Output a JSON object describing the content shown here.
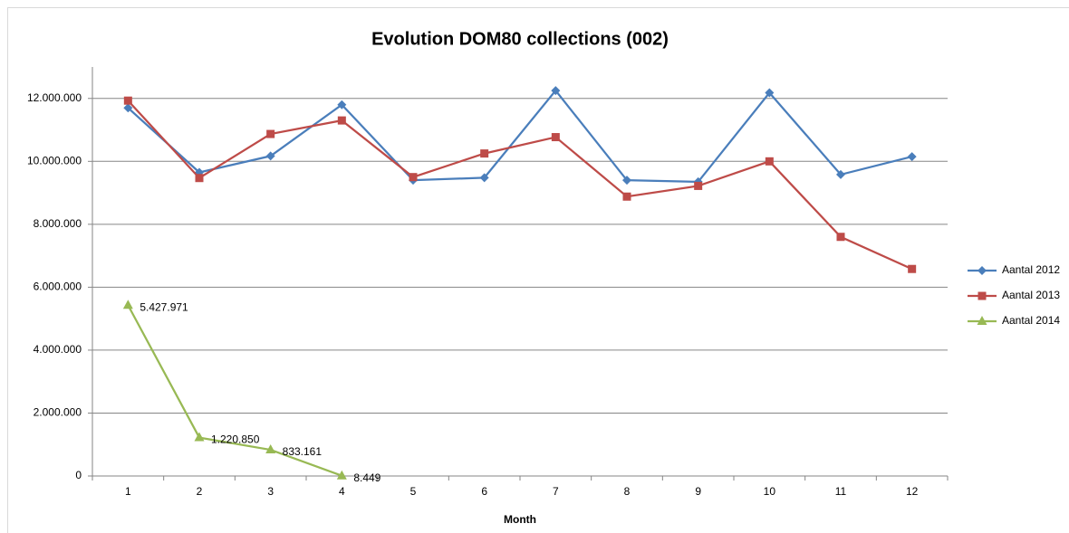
{
  "chart_data": {
    "type": "line",
    "title": "Evolution DOM80 collections (002)",
    "x_label": "Month",
    "categories": [
      "1",
      "2",
      "3",
      "4",
      "5",
      "6",
      "7",
      "8",
      "9",
      "10",
      "11",
      "12"
    ],
    "series": [
      {
        "name": "Aantal 2012",
        "color": "#4a7ebb",
        "marker": "diamond",
        "values": [
          11700000,
          9650000,
          10170000,
          11800000,
          9400000,
          9480000,
          12250000,
          9400000,
          9350000,
          12180000,
          9580000,
          10150000
        ]
      },
      {
        "name": "Aantal 2013",
        "color": "#be4b48",
        "marker": "square",
        "values": [
          11930000,
          9470000,
          10870000,
          11300000,
          9500000,
          10250000,
          10770000,
          8880000,
          9220000,
          10000000,
          7600000,
          6580000
        ]
      },
      {
        "name": "Aantal 2014",
        "color": "#98b954",
        "marker": "triangle",
        "values": [
          5427971,
          1220850,
          833161,
          8449,
          null,
          null,
          null,
          null,
          null,
          null,
          null,
          null
        ],
        "value_labels": [
          "5.427.971",
          "1.220.850",
          "833.161",
          "8.449",
          null,
          null,
          null,
          null,
          null,
          null,
          null,
          null
        ]
      }
    ],
    "ylim": [
      0,
      13000000
    ],
    "yticks": [
      0,
      {
        "value": 2000000,
        "label": "2.000.000"
      },
      {
        "value": 4000000,
        "label": "4.000.000"
      },
      {
        "value": 6000000,
        "label": "6.000.000"
      },
      {
        "value": 8000000,
        "label": "8.000.000"
      },
      {
        "value": 10000000,
        "label": "10.000.000"
      },
      {
        "value": 12000000,
        "label": "12.000.000"
      }
    ],
    "grid": true,
    "legend": "right"
  }
}
